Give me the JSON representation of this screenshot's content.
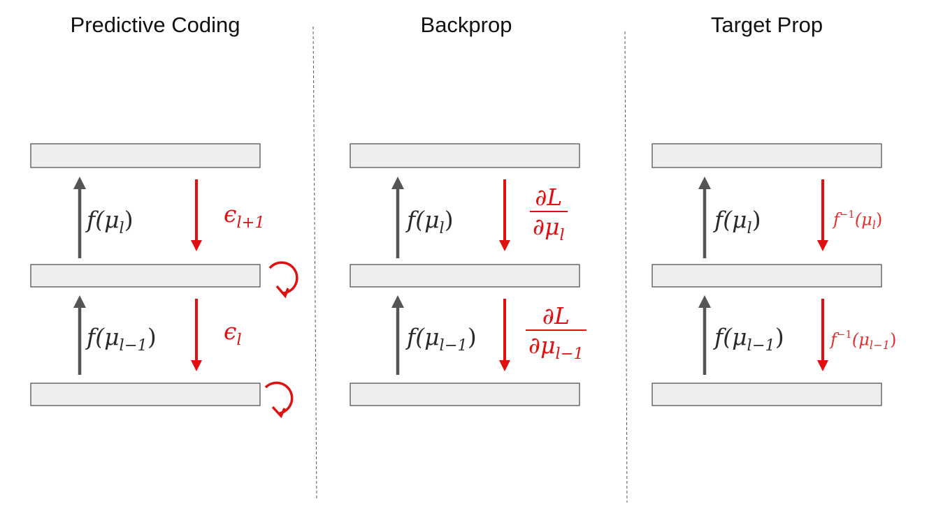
{
  "panels": [
    {
      "title": "Predictive Coding",
      "up_labels": [
        {
          "pre": "f(μ",
          "sub": "l",
          "post": ")"
        },
        {
          "pre": "f(μ",
          "sub": "l−1",
          "post": ")"
        }
      ],
      "down_labels": [
        {
          "pre": "ϵ",
          "sub": "l+1"
        },
        {
          "pre": "ϵ",
          "sub": "l"
        }
      ]
    },
    {
      "title": "Backprop",
      "up_labels": [
        {
          "pre": "f(μ",
          "sub": "l",
          "post": ")"
        },
        {
          "pre": "f(μ",
          "sub": "l−1",
          "post": ")"
        }
      ],
      "down_labels": [
        {
          "num": "∂L",
          "den": "∂μ",
          "sub": "l"
        },
        {
          "num": "∂L",
          "den": "∂μ",
          "sub": "l−1"
        }
      ]
    },
    {
      "title": "Target Prop",
      "up_labels": [
        {
          "pre": "f(μ",
          "sub": "l",
          "post": ")"
        },
        {
          "pre": "f(μ",
          "sub": "l−1",
          "post": ")"
        }
      ],
      "down_labels": [
        {
          "pre": "f",
          "sup": "−1",
          "mid": "(μ",
          "sub": "l",
          "post": ")"
        },
        {
          "pre": "f",
          "sup": "−1",
          "mid": "(μ",
          "sub": "l−1",
          "post": ")"
        }
      ]
    }
  ],
  "colors": {
    "forward": "#555555",
    "backward": "#e01010",
    "layer_fill": "#eeeeee",
    "layer_stroke": "#555555"
  }
}
